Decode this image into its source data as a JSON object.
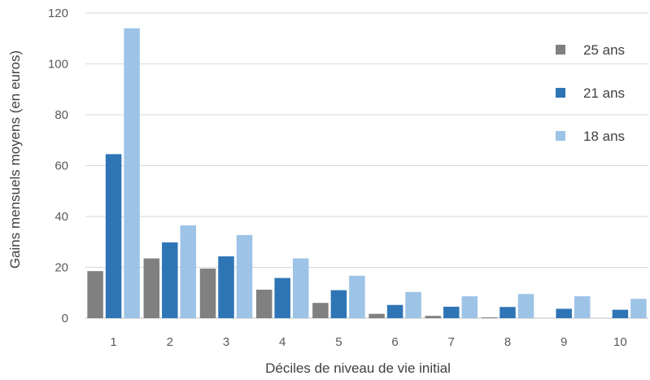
{
  "chart_data": {
    "type": "bar",
    "title": "",
    "xlabel": "Déciles de niveau de vie initial",
    "ylabel": "Gains mensuels moyens (en euros)",
    "categories": [
      "1",
      "2",
      "3",
      "4",
      "5",
      "6",
      "7",
      "8",
      "9",
      "10"
    ],
    "ylim": [
      0,
      120
    ],
    "yticks": [
      0,
      20,
      40,
      60,
      80,
      100,
      120
    ],
    "grid": true,
    "legend_position": "right",
    "series": [
      {
        "name": "25 ans",
        "color": "#808080",
        "values": [
          18.5,
          23.5,
          19.5,
          11.2,
          6.0,
          1.7,
          0.9,
          0.3,
          0.0,
          0.0
        ]
      },
      {
        "name": "21 ans",
        "color": "#2e75b6",
        "values": [
          64.5,
          29.8,
          24.3,
          15.8,
          11.0,
          5.2,
          4.5,
          4.4,
          3.7,
          3.3
        ]
      },
      {
        "name": "18 ans",
        "color": "#9dc3e6",
        "values": [
          114.0,
          36.5,
          32.7,
          23.5,
          16.7,
          10.3,
          8.6,
          9.5,
          8.6,
          7.6
        ]
      }
    ]
  }
}
